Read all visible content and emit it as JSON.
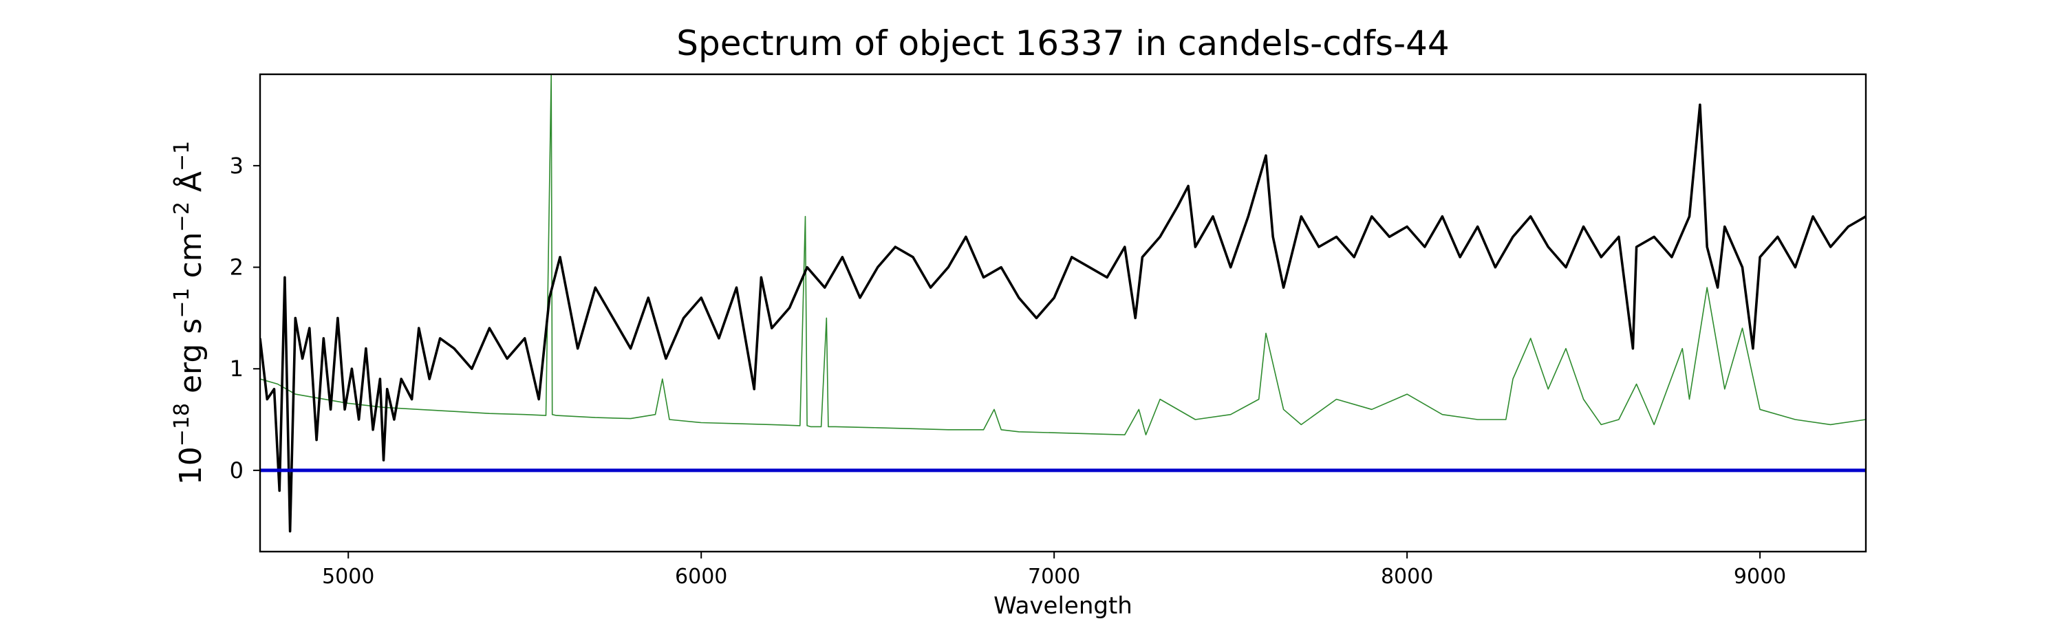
{
  "chart_data": {
    "type": "line",
    "title": "Spectrum of object 16337 in candels-cdfs-44",
    "xlabel": "Wavelength",
    "ylabel": {
      "prefix": "10",
      "exp1": "−18",
      "mid1": " erg s",
      "exp2": "−1",
      "mid2": " cm",
      "exp3": "−2",
      "mid3": " Å",
      "exp4": "−1"
    },
    "xlim": [
      4750,
      9300
    ],
    "ylim": [
      -0.8,
      3.9
    ],
    "xticks": [
      5000,
      6000,
      7000,
      8000,
      9000
    ],
    "xtick_labels": [
      "5000",
      "6000",
      "7000",
      "8000",
      "9000"
    ],
    "yticks": [
      0,
      1,
      2,
      3
    ],
    "ytick_labels": [
      "0",
      "1",
      "2",
      "3"
    ],
    "grid": false,
    "legend": null,
    "colors": {
      "flux": "#000000",
      "error": "#2e8b2e",
      "zero": "#0000cc"
    },
    "series": [
      {
        "role": "flux",
        "x": [
          4750,
          4770,
          4790,
          4805,
          4820,
          4835,
          4850,
          4870,
          4890,
          4910,
          4930,
          4950,
          4970,
          4990,
          5010,
          5030,
          5050,
          5070,
          5090,
          5100,
          5110,
          5130,
          5150,
          5180,
          5200,
          5230,
          5260,
          5300,
          5350,
          5400,
          5450,
          5500,
          5540,
          5570,
          5600,
          5650,
          5700,
          5750,
          5800,
          5850,
          5900,
          5950,
          6000,
          6050,
          6100,
          6150,
          6170,
          6200,
          6250,
          6300,
          6350,
          6400,
          6450,
          6500,
          6550,
          6600,
          6650,
          6700,
          6750,
          6800,
          6850,
          6900,
          6950,
          7000,
          7050,
          7100,
          7150,
          7200,
          7230,
          7250,
          7300,
          7350,
          7380,
          7400,
          7450,
          7500,
          7550,
          7600,
          7620,
          7650,
          7700,
          7750,
          7800,
          7850,
          7900,
          7950,
          8000,
          8050,
          8100,
          8150,
          8200,
          8250,
          8300,
          8350,
          8400,
          8450,
          8500,
          8550,
          8600,
          8640,
          8650,
          8700,
          8750,
          8800,
          8830,
          8850,
          8880,
          8900,
          8950,
          8980,
          9000,
          9050,
          9100,
          9150,
          9200,
          9250,
          9300
        ],
        "y": [
          1.3,
          0.7,
          0.8,
          -0.2,
          1.9,
          -0.6,
          1.5,
          1.1,
          1.4,
          0.3,
          1.3,
          0.6,
          1.5,
          0.6,
          1.0,
          0.5,
          1.2,
          0.4,
          0.9,
          0.1,
          0.8,
          0.5,
          0.9,
          0.7,
          1.4,
          0.9,
          1.3,
          1.2,
          1.0,
          1.4,
          1.1,
          1.3,
          0.7,
          1.7,
          2.1,
          1.2,
          1.8,
          1.5,
          1.2,
          1.7,
          1.1,
          1.5,
          1.7,
          1.3,
          1.8,
          0.8,
          1.9,
          1.4,
          1.6,
          2.0,
          1.8,
          2.1,
          1.7,
          2.0,
          2.2,
          2.1,
          1.8,
          2.0,
          2.3,
          1.9,
          2.0,
          1.7,
          1.5,
          1.7,
          2.1,
          2.0,
          1.9,
          2.2,
          1.5,
          2.1,
          2.3,
          2.6,
          2.8,
          2.2,
          2.5,
          2.0,
          2.5,
          3.1,
          2.3,
          1.8,
          2.5,
          2.2,
          2.3,
          2.1,
          2.5,
          2.3,
          2.4,
          2.2,
          2.5,
          2.1,
          2.4,
          2.0,
          2.3,
          2.5,
          2.2,
          2.0,
          2.4,
          2.1,
          2.3,
          1.2,
          2.2,
          2.3,
          2.1,
          2.5,
          3.6,
          2.2,
          1.8,
          2.4,
          2.0,
          1.2,
          2.1,
          2.3,
          2.0,
          2.5,
          2.2,
          2.4,
          2.5
        ]
      },
      {
        "role": "error",
        "x": [
          4750,
          4800,
          4850,
          4900,
          5000,
          5100,
          5200,
          5300,
          5400,
          5500,
          5560,
          5575,
          5578,
          5590,
          5700,
          5800,
          5870,
          5890,
          5910,
          6000,
          6100,
          6200,
          6280,
          6295,
          6300,
          6310,
          6340,
          6355,
          6360,
          6380,
          6500,
          6600,
          6700,
          6800,
          6830,
          6850,
          6900,
          7000,
          7100,
          7200,
          7240,
          7260,
          7300,
          7400,
          7500,
          7580,
          7600,
          7650,
          7700,
          7800,
          7900,
          8000,
          8100,
          8200,
          8280,
          8300,
          8350,
          8400,
          8450,
          8500,
          8550,
          8600,
          8650,
          8700,
          8780,
          8800,
          8850,
          8900,
          8950,
          9000,
          9100,
          9200,
          9300
        ],
        "y": [
          0.9,
          0.85,
          0.75,
          0.72,
          0.66,
          0.62,
          0.6,
          0.58,
          0.56,
          0.55,
          0.54,
          3.9,
          0.55,
          0.54,
          0.52,
          0.51,
          0.55,
          0.9,
          0.5,
          0.47,
          0.46,
          0.45,
          0.44,
          2.5,
          0.44,
          0.43,
          0.43,
          1.5,
          0.43,
          0.43,
          0.42,
          0.41,
          0.4,
          0.4,
          0.6,
          0.4,
          0.38,
          0.37,
          0.36,
          0.35,
          0.6,
          0.35,
          0.7,
          0.5,
          0.55,
          0.7,
          1.35,
          0.6,
          0.45,
          0.7,
          0.6,
          0.75,
          0.55,
          0.5,
          0.5,
          0.9,
          1.3,
          0.8,
          1.2,
          0.7,
          0.45,
          0.5,
          0.85,
          0.45,
          1.2,
          0.7,
          1.8,
          0.8,
          1.4,
          0.6,
          0.5,
          0.45,
          0.5
        ]
      }
    ],
    "zero_line": 0
  }
}
